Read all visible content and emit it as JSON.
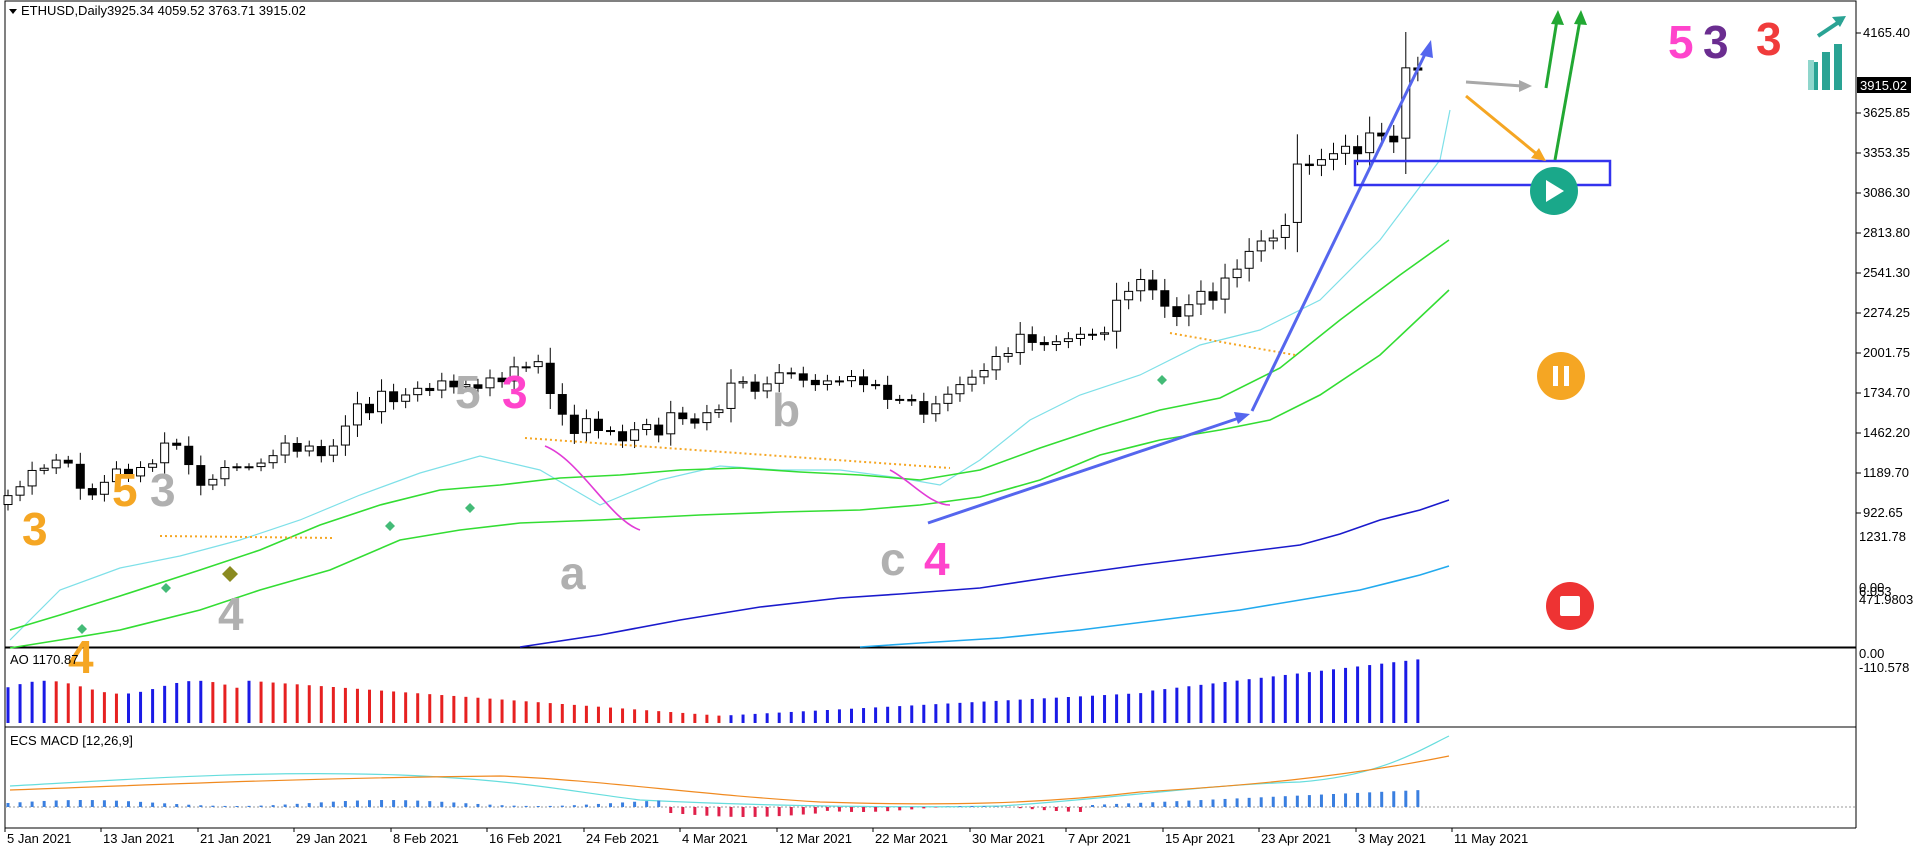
{
  "header": {
    "symbol_line": "ETHUSD,Daily",
    "ohlc": "3925.34 4059.52 3763.71 3915.02"
  },
  "price_axis": {
    "ticks": [
      "4165.40",
      "3625.85",
      "3353.35",
      "3086.30",
      "2813.80",
      "2541.30",
      "2274.25",
      "2001.75",
      "1734.70",
      "1462.20",
      "1189.70",
      "922.65"
    ],
    "current_price": "3915.02",
    "current_price_color": "#000000"
  },
  "ao_panel": {
    "label": "AO 1170.87",
    "ticks": [
      "1231.78",
      "0.00",
      "6.053"
    ]
  },
  "macd_panel": {
    "label": "ECS MACD [12,26,9]",
    "ticks": [
      "471.9803",
      "0.00",
      "-110.578"
    ]
  },
  "date_axis": {
    "ticks": [
      "5 Jan 2021",
      "13 Jan 2021",
      "21 Jan 2021",
      "29 Jan 2021",
      "8 Feb 2021",
      "16 Feb 2021",
      "24 Feb 2021",
      "4 Mar 2021",
      "12 Mar 2021",
      "22 Mar 2021",
      "30 Mar 2021",
      "7 Apr 2021",
      "15 Apr 2021",
      "23 Apr 2021",
      "3 May 2021",
      "11 May 2021"
    ]
  },
  "wave_labels": [
    {
      "text": "3",
      "color": "#f5a623"
    },
    {
      "text": "4",
      "color": "#f5a623"
    },
    {
      "text": "5",
      "color": "#f5a623"
    },
    {
      "text": "3",
      "color": "#b0b0b0"
    },
    {
      "text": "4",
      "color": "#b0b0b0"
    },
    {
      "text": "5",
      "color": "#b0b0b0"
    },
    {
      "text": "3",
      "color": "#ff44cc"
    },
    {
      "text": "a",
      "color": "#b0b0b0"
    },
    {
      "text": "b",
      "color": "#b0b0b0"
    },
    {
      "text": "c",
      "color": "#b0b0b0"
    },
    {
      "text": "4",
      "color": "#ff44cc"
    },
    {
      "text": "5",
      "color": "#ff44cc"
    },
    {
      "text": "3",
      "color": "#6b2d90"
    },
    {
      "text": "3",
      "color": "#f03c3c"
    }
  ],
  "icons": {
    "play": "play-icon",
    "pause": "pause-icon",
    "stop": "stop-icon",
    "logo": "bar-chart-arrow-logo"
  },
  "colors": {
    "bull_candle": "#ffffff",
    "bear_candle": "#000000",
    "ema_fast": "#7ee0e8",
    "ema_green": "#33dd33",
    "ema_blue": "#1a1acc",
    "ema_lightblue": "#22aaee",
    "ao_up": "#1a1ae6",
    "ao_down": "#e62020",
    "trend_arrow": "#5566ee",
    "play_button": "#1aa88a",
    "pause_button": "#f5a623",
    "stop_button": "#ee3333"
  },
  "chart_data": {
    "type": "candlestick",
    "symbol": "ETHUSD",
    "timeframe": "Daily",
    "y_range": [
      830,
      4300
    ],
    "x_range": [
      "2021-01-04",
      "2021-05-11"
    ]
  }
}
